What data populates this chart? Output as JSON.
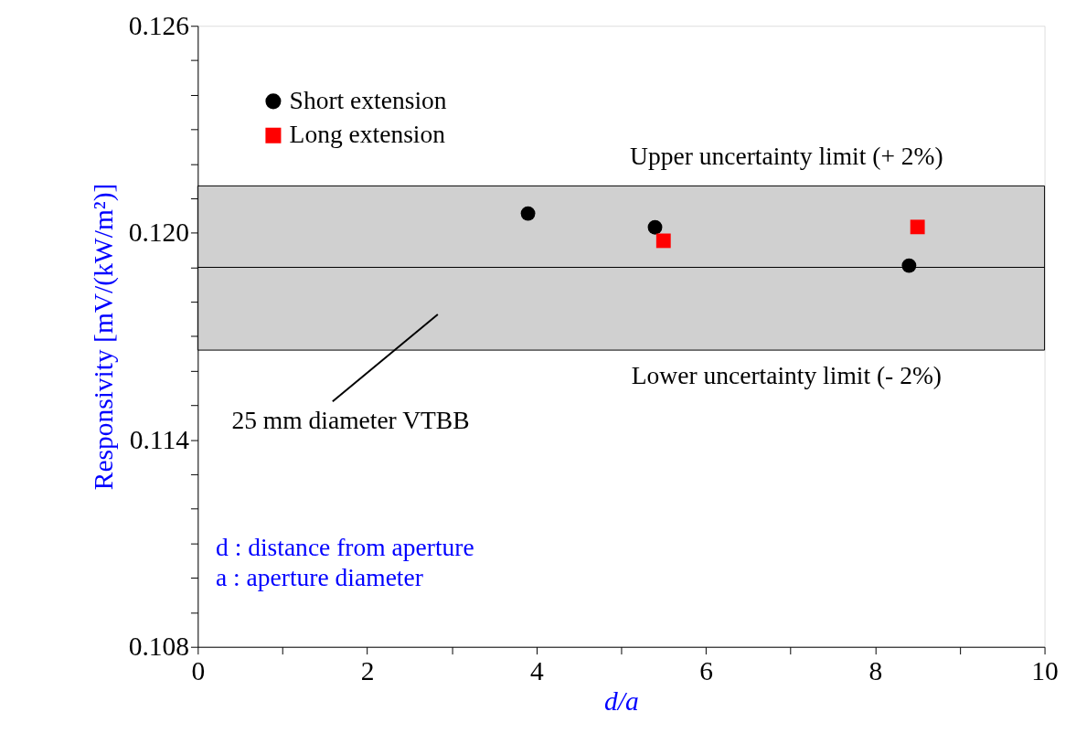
{
  "chart_data": {
    "type": "scatter",
    "xlabel": "d/a",
    "ylabel": "Responsivity [mV/(kW/m²)]",
    "xlim": [
      0,
      10
    ],
    "ylim": [
      0.108,
      0.126
    ],
    "xticks": [
      0,
      {
        "value": 1,
        "label": null
      },
      2,
      {
        "value": 3,
        "label": null
      },
      4,
      {
        "value": 5,
        "label": null
      },
      6,
      {
        "value": 7,
        "label": null
      },
      8,
      {
        "value": 9,
        "label": null
      },
      10
    ],
    "yticks": [
      0.108,
      {
        "value": 0.109,
        "label": null
      },
      {
        "value": 0.11,
        "label": null
      },
      {
        "value": 0.111,
        "label": null
      },
      {
        "value": 0.112,
        "label": null
      },
      {
        "value": 0.113,
        "label": null
      },
      0.114,
      {
        "value": 0.115,
        "label": null
      },
      {
        "value": 0.116,
        "label": null
      },
      {
        "value": 0.117,
        "label": null
      },
      {
        "value": 0.118,
        "label": null
      },
      {
        "value": 0.119,
        "label": null
      },
      {
        "value": 0.12,
        "label": "0.120"
      },
      {
        "value": 0.121,
        "label": null
      },
      {
        "value": 0.122,
        "label": null
      },
      {
        "value": 0.123,
        "label": null
      },
      {
        "value": 0.124,
        "label": null
      },
      {
        "value": 0.125,
        "label": null
      },
      0.126
    ],
    "series": [
      {
        "name": "Short extension",
        "color": "#000000",
        "marker": "circle",
        "x": [
          3.9,
          5.4,
          8.4
        ],
        "values": [
          0.12056,
          0.12016,
          0.11905
        ]
      },
      {
        "name": "Long extension",
        "color": "#ff0000",
        "marker": "square",
        "x": [
          5.5,
          8.5
        ],
        "values": [
          0.11977,
          0.12017
        ]
      }
    ],
    "bands": [
      {
        "axis": "y",
        "from": 0.1166,
        "to": 0.12136,
        "color": "#b0b0b0"
      }
    ],
    "ref_lines": [
      {
        "axis": "y",
        "value": 0.119,
        "color": "#000000"
      }
    ],
    "annotations": [
      "Upper uncertainty limit (+ 2%)",
      "Lower uncertainty limit (- 2%)",
      "25 mm diameter VTBB",
      "d : distance from aperture",
      "a : aperture diameter"
    ],
    "legend": "top left",
    "grid": false
  }
}
